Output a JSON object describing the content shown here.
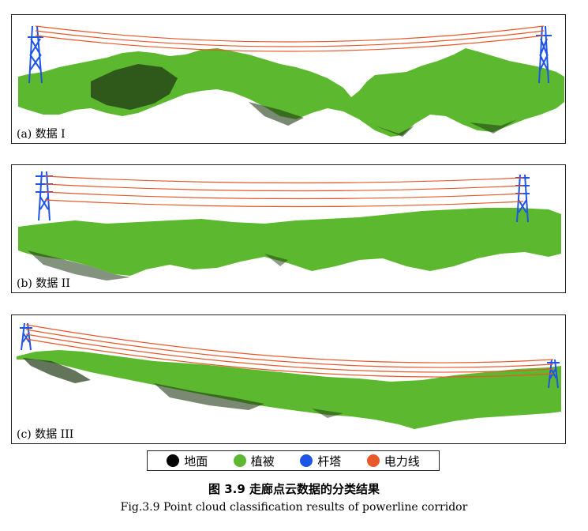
{
  "panels": [
    {
      "label": "(a)  数据 I"
    },
    {
      "label": "(b)  数据 II"
    },
    {
      "label": "(c)  数据 III"
    }
  ],
  "legend": [
    {
      "label": "地面",
      "color": "#000000"
    },
    {
      "label": "植被",
      "color": "#5cb82e"
    },
    {
      "label": "杆塔",
      "color": "#1f55e6"
    },
    {
      "label": "电力线",
      "color": "#e8582a"
    }
  ],
  "caption": {
    "cn": "图 3.9  走廊点云数据的分类结果",
    "en": "Fig.3.9 Point cloud classification results of powerline corridor"
  }
}
